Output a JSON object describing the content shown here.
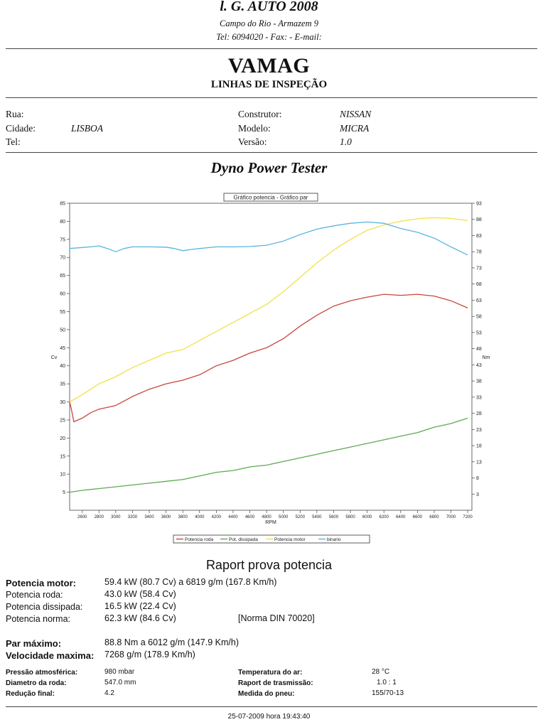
{
  "header": {
    "company": "l. G. AUTO 2008",
    "address": "Campo do Rio - Armazem 9",
    "contact": "Tel: 6094020 - Fax:  - E-mail:"
  },
  "title": {
    "main": "VAMAG",
    "subtitle": "LINHAS DE INSPEÇÃO"
  },
  "customer": {
    "rua_label": "Rua:",
    "rua_value": "",
    "cidade_label": "Cidade:",
    "cidade_value": "LISBOA",
    "tel_label": "Tel:",
    "tel_value": ""
  },
  "vehicle": {
    "construtor_label": "Construtor:",
    "construtor_value": "NISSAN",
    "modelo_label": "Modelo:",
    "modelo_value": "MICRA",
    "versao_label": "Versão:",
    "versao_value": "1.0"
  },
  "section_title": "Dyno Power Tester",
  "chart_data": {
    "type": "line",
    "title": "Gráfico potencia - Gráfico par",
    "xlabel": "RPM",
    "ylabel": "Cv",
    "y2label": "Nm",
    "xlim": [
      2450,
      7250
    ],
    "ylim": [
      0,
      85
    ],
    "y2lim": [
      -2,
      93
    ],
    "x_ticks": [
      2600,
      2800,
      3000,
      3200,
      3400,
      3600,
      3800,
      4000,
      4200,
      4400,
      4600,
      4800,
      5000,
      5200,
      5400,
      5600,
      5800,
      6000,
      6200,
      6400,
      6600,
      6800,
      7000,
      7200
    ],
    "y_ticks": [
      5,
      10,
      15,
      20,
      25,
      30,
      35,
      40,
      45,
      50,
      55,
      60,
      65,
      70,
      75,
      80,
      85
    ],
    "y2_ticks": [
      3,
      8,
      13,
      18,
      23,
      28,
      33,
      38,
      43,
      48,
      53,
      58,
      63,
      68,
      73,
      78,
      83,
      88,
      93
    ],
    "legend": [
      "Potencia roda",
      "Pot. dissipada",
      "Potencia motor",
      "binario"
    ],
    "series": [
      {
        "name": "Potencia roda",
        "axis": "left",
        "color": "#c8463c",
        "x": [
          2450,
          2470,
          2500,
          2600,
          2700,
          2800,
          2900,
          3000,
          3200,
          3400,
          3600,
          3800,
          4000,
          4200,
          4400,
          4600,
          4800,
          5000,
          5200,
          5400,
          5600,
          5800,
          6000,
          6200,
          6400,
          6600,
          6800,
          7000,
          7200
        ],
        "values": [
          30,
          28,
          24.5,
          25.5,
          27,
          28,
          28.5,
          29,
          31.5,
          33.5,
          35,
          36,
          37.5,
          40,
          41.5,
          43.5,
          45,
          47.5,
          51,
          54,
          56.5,
          58,
          59,
          59.8,
          59.5,
          59.8,
          59.3,
          58,
          56
        ]
      },
      {
        "name": "Pot. dissipada",
        "axis": "left",
        "color": "#5caa50",
        "x": [
          2450,
          2600,
          2800,
          3000,
          3200,
          3400,
          3600,
          3800,
          4000,
          4200,
          4400,
          4600,
          4800,
          5000,
          5200,
          5400,
          5600,
          5800,
          6000,
          6200,
          6400,
          6600,
          6800,
          7000,
          7200
        ],
        "values": [
          5,
          5.5,
          6,
          6.5,
          7,
          7.5,
          8,
          8.5,
          9.5,
          10.5,
          11,
          12,
          12.5,
          13.5,
          14.5,
          15.5,
          16.5,
          17.5,
          18.5,
          19.5,
          20.5,
          21.5,
          23,
          24,
          25.5
        ]
      },
      {
        "name": "Potencia motor",
        "axis": "left",
        "color": "#f0e24a",
        "x": [
          2450,
          2600,
          2800,
          3000,
          3200,
          3400,
          3600,
          3800,
          4000,
          4200,
          4400,
          4600,
          4800,
          5000,
          5200,
          5400,
          5600,
          5800,
          6000,
          6200,
          6400,
          6600,
          6800,
          7000,
          7200
        ],
        "values": [
          30,
          32,
          35,
          37,
          39.5,
          41.5,
          43.5,
          44.5,
          47,
          49.5,
          52,
          54.5,
          57,
          60.5,
          64.5,
          68.5,
          72,
          75,
          77.5,
          79,
          80,
          80.7,
          81,
          80.8,
          80.2
        ]
      },
      {
        "name": "binario",
        "axis": "right",
        "color": "#5ab4e0",
        "x": [
          2450,
          2600,
          2700,
          2800,
          2900,
          3000,
          3100,
          3200,
          3400,
          3600,
          3700,
          3800,
          3900,
          4000,
          4200,
          4400,
          4600,
          4800,
          5000,
          5200,
          5400,
          5600,
          5800,
          6000,
          6200,
          6400,
          6600,
          6800,
          7000,
          7200
        ],
        "values": [
          79,
          79.3,
          79.5,
          79.8,
          79,
          78,
          79,
          79.5,
          79.5,
          79.4,
          79,
          78.3,
          78.7,
          79,
          79.5,
          79.5,
          79.6,
          80,
          81.3,
          83.3,
          85,
          86,
          86.8,
          87.2,
          86.8,
          85.2,
          84,
          82.2,
          79.5,
          77
        ]
      }
    ]
  },
  "report": {
    "title": "Raport prova potencia",
    "potencia_motor_label": "Potencia motor:",
    "potencia_motor_value": "59.4 kW (80.7 Cv) a 6819 g/m (167.8 Km/h)",
    "potencia_roda_label": "Potencia roda:",
    "potencia_roda_value": "43.0 kW (58.4 Cv)",
    "potencia_dissipada_label": "Potencia dissipada:",
    "potencia_dissipada_value": "16.5 kW (22.4 Cv)",
    "potencia_norma_label": "Potencia norma:",
    "potencia_norma_value": "62.3 kW (84.6 Cv)",
    "norma": "[Norma DIN 70020]",
    "par_maximo_label": "Par máximo:",
    "par_maximo_value": "88.8 Nm a 6012 g/m (147.9 Km/h)",
    "velocidade_label": "Velocidade maxima:",
    "velocidade_value": "7268 g/m (178.9 Km/h)"
  },
  "conditions": {
    "pressao_label": "Pressão atmosférica:",
    "pressao_value": "980 mbar",
    "diametro_label": "Diametro da roda:",
    "diametro_value": "547.0 mm",
    "reducao_label": "Redução final:",
    "reducao_value": "4.2",
    "temperatura_label": "Temperatura do ar:",
    "temperatura_value": "28 °C",
    "trasmissao_label": "Raport de trasmissão:",
    "trasmissao_value": "1.0 : 1",
    "pneu_label": "Medida do pneu:",
    "pneu_value": "155/70-13"
  },
  "footer": {
    "datetime": "25-07-2009 hora 19:43:40"
  }
}
